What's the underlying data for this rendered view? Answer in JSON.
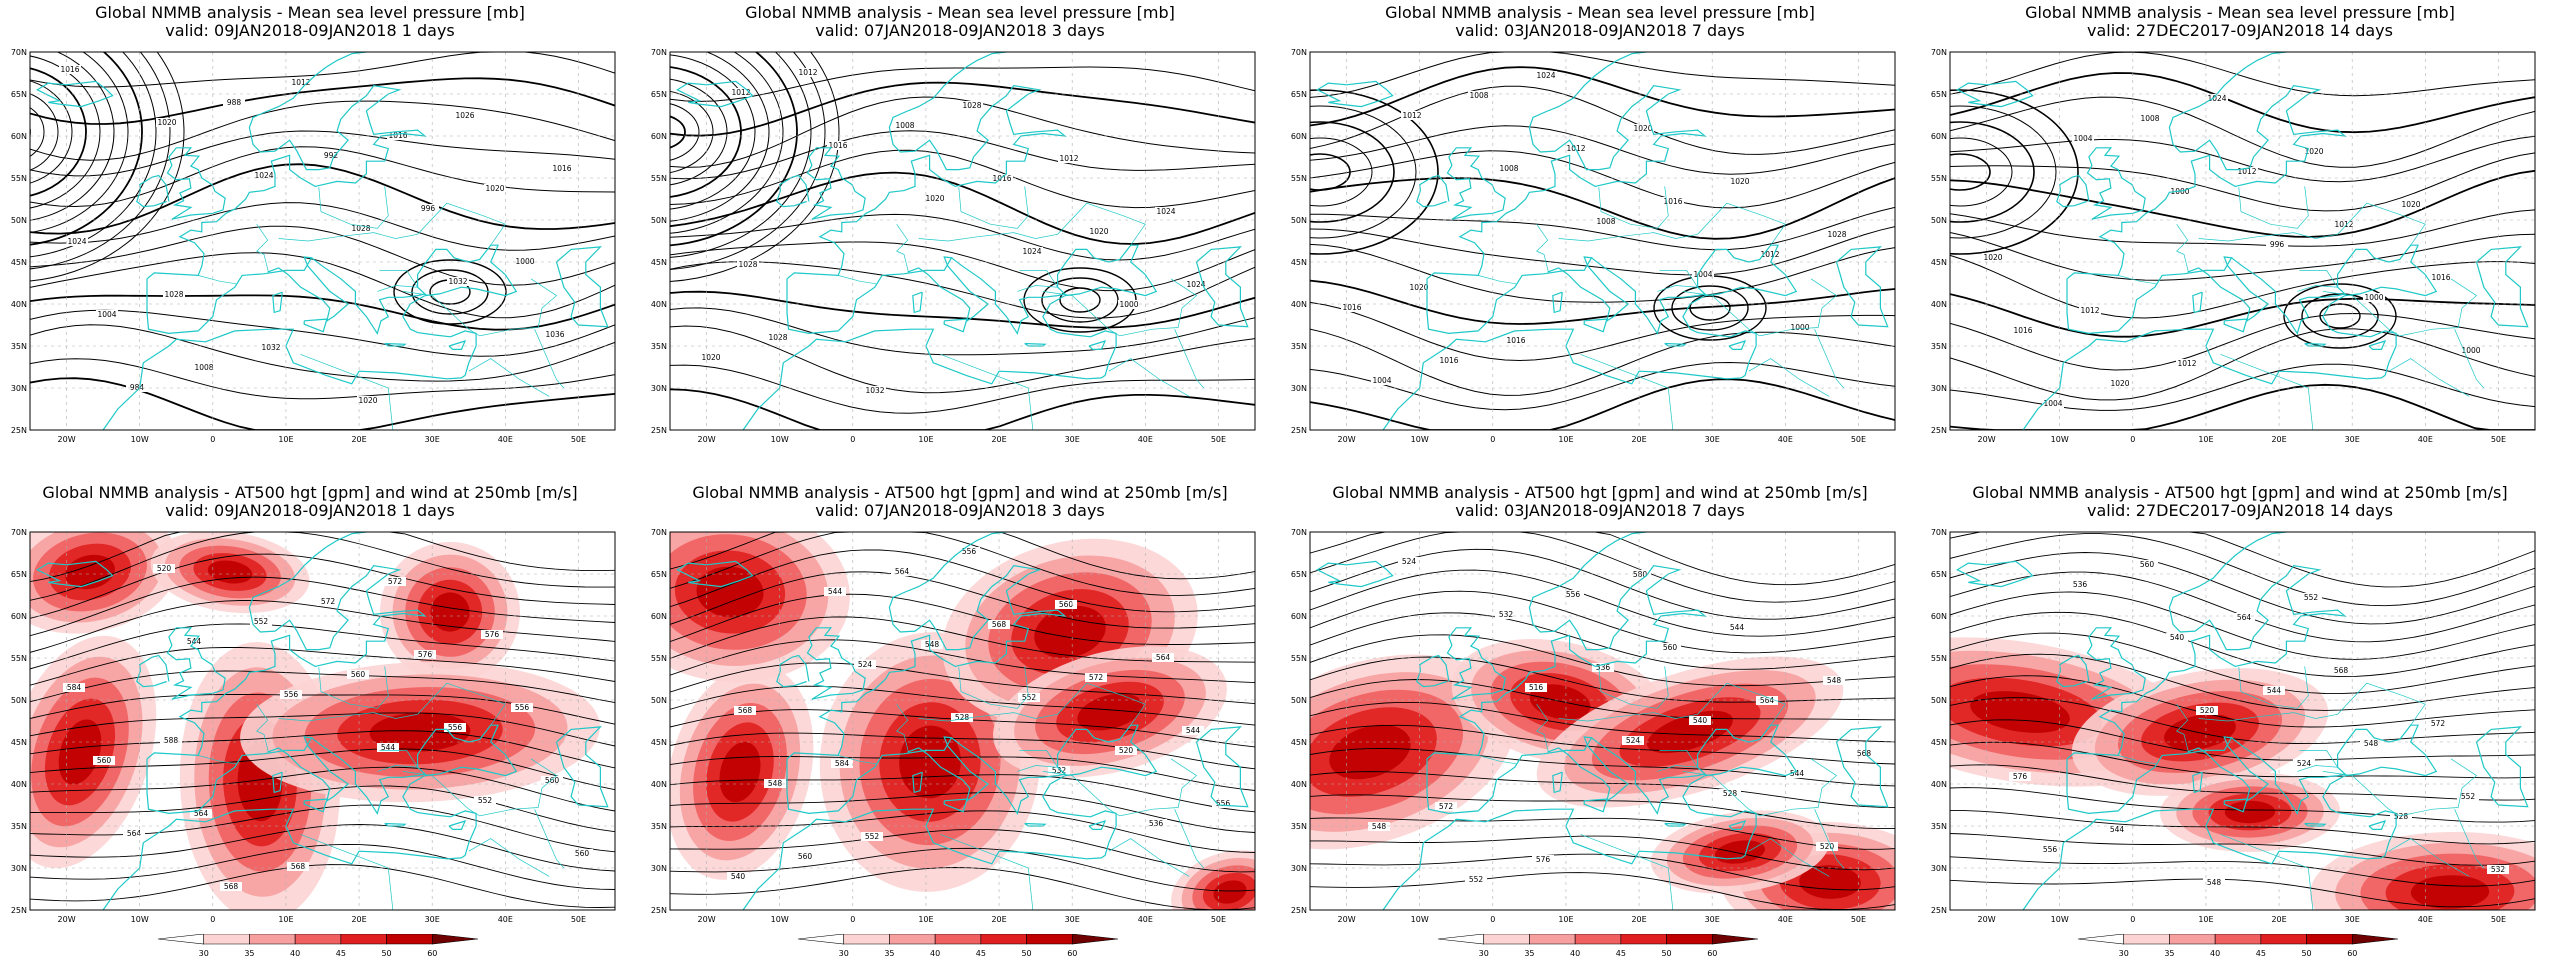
{
  "panels": [
    {
      "row": "mslp",
      "title_line1": "Global NMMB analysis - Mean sea level pressure [mb]",
      "title_line2": "valid: 09JAN2018-09JAN2018  1 days",
      "contour_labels": [
        "1016",
        "1020",
        "1024",
        "1028",
        "1032",
        "1036",
        "984",
        "988",
        "992",
        "996",
        "1000",
        "1004",
        "1008",
        "1012",
        "1016",
        "1020",
        "1024",
        "1028",
        "1032",
        "1020",
        "1026",
        "1016"
      ]
    },
    {
      "row": "mslp",
      "title_line1": "Global NMMB analysis - Mean sea level pressure [mb]",
      "title_line2": "valid: 07JAN2018-09JAN2018  3 days",
      "contour_labels": [
        "1012",
        "1016",
        "1020",
        "1024",
        "1000",
        "1020",
        "1012",
        "1008",
        "1016",
        "1020",
        "1024",
        "1028",
        "1032",
        "1028",
        "1012",
        "1024",
        "1028"
      ]
    },
    {
      "row": "mslp",
      "title_line1": "Global NMMB analysis - Mean sea level pressure [mb]",
      "title_line2": "valid: 03JAN2018-09JAN2018  7 days",
      "contour_labels": [
        "1012",
        "1008",
        "1008",
        "1004",
        "1000",
        "1004",
        "1008",
        "1012",
        "1016",
        "1012",
        "1016",
        "1016",
        "1024",
        "1020",
        "1020",
        "1028",
        "1020",
        "1016"
      ]
    },
    {
      "row": "mslp",
      "title_line1": "Global NMMB analysis - Mean sea level pressure [mb]",
      "title_line2": "valid: 27DEC2017-09JAN2018  14 days",
      "contour_labels": [
        "1004",
        "1000",
        "996",
        "1000",
        "1000",
        "1004",
        "1008",
        "1012",
        "1012",
        "1016",
        "1016",
        "1020",
        "1024",
        "1020",
        "1020",
        "1020",
        "1012",
        "1012"
      ]
    },
    {
      "row": "z500",
      "title_line1": "Global NMMB analysis - AT500 hgt [gpm] and wind at 250mb [m/s]",
      "title_line2": "valid: 09JAN2018-09JAN2018  1 days",
      "contour_labels": [
        "544",
        "556",
        "544",
        "552",
        "560",
        "520",
        "552",
        "560",
        "556",
        "560",
        "564",
        "568",
        "572",
        "576",
        "556",
        "560",
        "564",
        "568",
        "572",
        "576",
        "584",
        "588"
      ]
    },
    {
      "row": "z500",
      "title_line1": "Global NMMB analysis - AT500 hgt [gpm] and wind at 250mb [m/s]",
      "title_line2": "valid: 07JAN2018-09JAN2018  3 days",
      "contour_labels": [
        "524",
        "528",
        "532",
        "536",
        "540",
        "544",
        "548",
        "552",
        "520",
        "556",
        "560",
        "564",
        "568",
        "572",
        "544",
        "548",
        "552",
        "556",
        "560",
        "564",
        "568",
        "584"
      ]
    },
    {
      "row": "z500",
      "title_line1": "Global NMMB analysis - AT500 hgt [gpm] and wind at 250mb [m/s]",
      "title_line2": "valid: 03JAN2018-09JAN2018  7 days",
      "contour_labels": [
        "516",
        "524",
        "528",
        "520",
        "524",
        "532",
        "536",
        "540",
        "544",
        "548",
        "552",
        "556",
        "560",
        "564",
        "568",
        "572",
        "576",
        "580",
        "544",
        "548"
      ]
    },
    {
      "row": "z500",
      "title_line1": "Global NMMB analysis - AT500 hgt [gpm] and wind at 250mb [m/s]",
      "title_line2": "valid: 27DEC2017-09JAN2018  14 days",
      "contour_labels": [
        "520",
        "524",
        "528",
        "532",
        "536",
        "540",
        "544",
        "548",
        "552",
        "556",
        "560",
        "564",
        "568",
        "572",
        "576",
        "544",
        "548",
        "552"
      ]
    }
  ],
  "axes": {
    "lat_ticks": [
      "70N",
      "65N",
      "60N",
      "55N",
      "50N",
      "45N",
      "40N",
      "35N",
      "30N",
      "25N"
    ],
    "lon_ticks": [
      "20W",
      "10W",
      "0",
      "10E",
      "20E",
      "30E",
      "40E",
      "50E"
    ]
  },
  "colorbar": {
    "ticks": [
      "30",
      "35",
      "40",
      "45",
      "50",
      "60"
    ],
    "colors": [
      "#ffffff",
      "#fcd4d4",
      "#f7a0a0",
      "#f06060",
      "#e02020",
      "#c00000",
      "#700000"
    ]
  },
  "colors": {
    "coast": "#1ec8c8",
    "contour": "#000000",
    "grid": "#b0b0b0"
  }
}
